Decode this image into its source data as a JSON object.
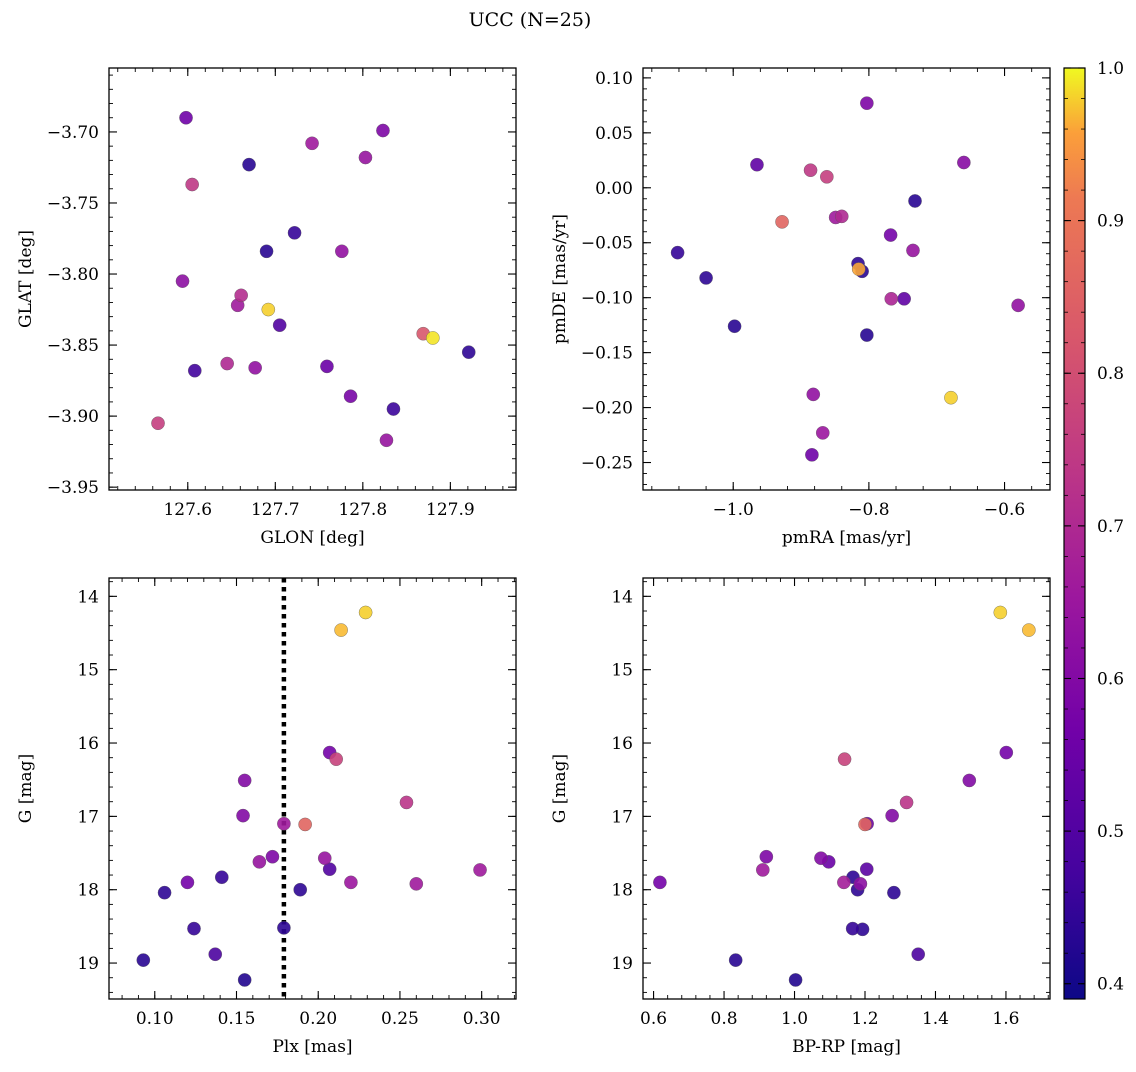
{
  "figure": {
    "title": "UCC (N=25)"
  },
  "colorbar": {
    "min": 0.39,
    "max": 1.0,
    "ticks": [
      "0.4",
      "0.5",
      "0.6",
      "0.7",
      "0.8",
      "0.9",
      "1.0"
    ],
    "tick_values": [
      0.4,
      0.5,
      0.6,
      0.7,
      0.8,
      0.9,
      1.0
    ],
    "colormap": "plasma"
  },
  "chart_data": [
    {
      "type": "scatter",
      "id": "glon-glat",
      "xlabel": "GLON [deg]",
      "ylabel": "GLAT [deg]",
      "xlim": [
        127.51,
        127.975
      ],
      "ylim": [
        -3.952,
        -3.655
      ],
      "xticks": [
        127.6,
        127.7,
        127.8,
        127.9
      ],
      "xtick_labels": [
        "127.6",
        "127.7",
        "127.8",
        "127.9"
      ],
      "yticks": [
        -3.7,
        -3.75,
        -3.8,
        -3.85,
        -3.9,
        -3.95
      ],
      "ytick_labels": [
        "−3.70",
        "−3.75",
        "−3.80",
        "−3.85",
        "−3.90",
        "−3.95"
      ],
      "points": [
        {
          "x": 127.598,
          "y": -3.69,
          "c": 0.56
        },
        {
          "x": 127.605,
          "y": -3.737,
          "c": 0.74
        },
        {
          "x": 127.67,
          "y": -3.723,
          "c": 0.43
        },
        {
          "x": 127.742,
          "y": -3.708,
          "c": 0.66
        },
        {
          "x": 127.803,
          "y": -3.718,
          "c": 0.64
        },
        {
          "x": 127.823,
          "y": -3.699,
          "c": 0.59
        },
        {
          "x": 127.69,
          "y": -3.784,
          "c": 0.43
        },
        {
          "x": 127.722,
          "y": -3.771,
          "c": 0.45
        },
        {
          "x": 127.776,
          "y": -3.784,
          "c": 0.63
        },
        {
          "x": 127.594,
          "y": -3.805,
          "c": 0.62
        },
        {
          "x": 127.661,
          "y": -3.815,
          "c": 0.71
        },
        {
          "x": 127.657,
          "y": -3.822,
          "c": 0.66
        },
        {
          "x": 127.692,
          "y": -3.825,
          "c": 0.98
        },
        {
          "x": 127.705,
          "y": -3.836,
          "c": 0.5
        },
        {
          "x": 127.869,
          "y": -3.842,
          "c": 0.82
        },
        {
          "x": 127.88,
          "y": -3.845,
          "c": 0.99
        },
        {
          "x": 127.921,
          "y": -3.855,
          "c": 0.44
        },
        {
          "x": 127.608,
          "y": -3.868,
          "c": 0.47
        },
        {
          "x": 127.645,
          "y": -3.863,
          "c": 0.7
        },
        {
          "x": 127.677,
          "y": -3.866,
          "c": 0.63
        },
        {
          "x": 127.759,
          "y": -3.865,
          "c": 0.55
        },
        {
          "x": 127.786,
          "y": -3.886,
          "c": 0.58
        },
        {
          "x": 127.835,
          "y": -3.895,
          "c": 0.46
        },
        {
          "x": 127.827,
          "y": -3.917,
          "c": 0.64
        },
        {
          "x": 127.566,
          "y": -3.905,
          "c": 0.76
        }
      ]
    },
    {
      "type": "scatter",
      "id": "pmra-pmde",
      "xlabel": "pmRA [mas/yr]",
      "ylabel": "pmDE [mas/yr]",
      "xlim": [
        -1.133,
        -0.533
      ],
      "ylim": [
        -0.275,
        0.109
      ],
      "xticks": [
        -1.0,
        -0.8,
        -0.6
      ],
      "xtick_labels": [
        "−1.0",
        "−0.8",
        "−0.6"
      ],
      "yticks": [
        0.1,
        0.05,
        0.0,
        -0.05,
        -0.1,
        -0.15,
        -0.2,
        -0.25
      ],
      "ytick_labels": [
        "0.10",
        "0.05",
        "0.00",
        "−0.05",
        "−0.10",
        "−0.15",
        "−0.20",
        "−0.25"
      ],
      "points": [
        {
          "x": -0.803,
          "y": 0.077,
          "c": 0.59
        },
        {
          "x": -0.965,
          "y": 0.021,
          "c": 0.53
        },
        {
          "x": -0.66,
          "y": 0.023,
          "c": 0.61
        },
        {
          "x": -0.886,
          "y": 0.016,
          "c": 0.74
        },
        {
          "x": -0.862,
          "y": 0.01,
          "c": 0.76
        },
        {
          "x": -0.732,
          "y": -0.012,
          "c": 0.43
        },
        {
          "x": -0.928,
          "y": -0.031,
          "c": 0.86
        },
        {
          "x": -0.849,
          "y": -0.027,
          "c": 0.66
        },
        {
          "x": -0.84,
          "y": -0.026,
          "c": 0.7
        },
        {
          "x": -0.768,
          "y": -0.043,
          "c": 0.57
        },
        {
          "x": -0.735,
          "y": -0.057,
          "c": 0.64
        },
        {
          "x": -1.082,
          "y": -0.059,
          "c": 0.45
        },
        {
          "x": -0.816,
          "y": -0.069,
          "c": 0.44
        },
        {
          "x": -0.81,
          "y": -0.076,
          "c": 0.43
        },
        {
          "x": -0.815,
          "y": -0.074,
          "c": 0.96
        },
        {
          "x": -1.04,
          "y": -0.082,
          "c": 0.44
        },
        {
          "x": -0.767,
          "y": -0.101,
          "c": 0.69
        },
        {
          "x": -0.748,
          "y": -0.101,
          "c": 0.53
        },
        {
          "x": -0.58,
          "y": -0.107,
          "c": 0.63
        },
        {
          "x": -0.998,
          "y": -0.126,
          "c": 0.43
        },
        {
          "x": -0.803,
          "y": -0.134,
          "c": 0.43
        },
        {
          "x": -0.882,
          "y": -0.188,
          "c": 0.63
        },
        {
          "x": -0.679,
          "y": -0.191,
          "c": 0.98
        },
        {
          "x": -0.868,
          "y": -0.223,
          "c": 0.65
        },
        {
          "x": -0.884,
          "y": -0.243,
          "c": 0.56
        }
      ]
    },
    {
      "type": "scatter",
      "id": "plx-g",
      "xlabel": "Plx [mas]",
      "ylabel": "G [mag]",
      "xlim": [
        0.072,
        0.321
      ],
      "ylim": [
        19.49,
        13.75
      ],
      "y_inverted": true,
      "xticks": [
        0.1,
        0.15,
        0.2,
        0.25,
        0.3
      ],
      "xtick_labels": [
        "0.10",
        "0.15",
        "0.20",
        "0.25",
        "0.30"
      ],
      "yticks": [
        14,
        15,
        16,
        17,
        18,
        19
      ],
      "ytick_labels": [
        "14",
        "15",
        "16",
        "17",
        "18",
        "19"
      ],
      "vline": {
        "x": 0.179,
        "style": "dotted"
      },
      "points": [
        {
          "x": 0.229,
          "y": 14.22,
          "c": 0.98
        },
        {
          "x": 0.214,
          "y": 14.46,
          "c": 0.97
        },
        {
          "x": 0.207,
          "y": 16.13,
          "c": 0.57
        },
        {
          "x": 0.211,
          "y": 16.22,
          "c": 0.77
        },
        {
          "x": 0.155,
          "y": 16.51,
          "c": 0.6
        },
        {
          "x": 0.254,
          "y": 16.81,
          "c": 0.73
        },
        {
          "x": 0.154,
          "y": 16.99,
          "c": 0.6
        },
        {
          "x": 0.192,
          "y": 17.11,
          "c": 0.86
        },
        {
          "x": 0.179,
          "y": 17.1,
          "c": 0.66
        },
        {
          "x": 0.172,
          "y": 17.55,
          "c": 0.59
        },
        {
          "x": 0.164,
          "y": 17.62,
          "c": 0.64
        },
        {
          "x": 0.204,
          "y": 17.57,
          "c": 0.64
        },
        {
          "x": 0.207,
          "y": 17.72,
          "c": 0.5
        },
        {
          "x": 0.299,
          "y": 17.73,
          "c": 0.66
        },
        {
          "x": 0.141,
          "y": 17.83,
          "c": 0.45
        },
        {
          "x": 0.12,
          "y": 17.9,
          "c": 0.57
        },
        {
          "x": 0.22,
          "y": 17.9,
          "c": 0.65
        },
        {
          "x": 0.26,
          "y": 17.92,
          "c": 0.66
        },
        {
          "x": 0.189,
          "y": 18.0,
          "c": 0.44
        },
        {
          "x": 0.106,
          "y": 18.04,
          "c": 0.44
        },
        {
          "x": 0.124,
          "y": 18.53,
          "c": 0.45
        },
        {
          "x": 0.179,
          "y": 18.52,
          "c": 0.44
        },
        {
          "x": 0.137,
          "y": 18.88,
          "c": 0.49
        },
        {
          "x": 0.093,
          "y": 18.96,
          "c": 0.43
        },
        {
          "x": 0.155,
          "y": 19.23,
          "c": 0.42
        }
      ]
    },
    {
      "type": "scatter",
      "id": "bprp-g",
      "xlabel": "BP-RP [mag]",
      "ylabel": "G [mag]",
      "xlim": [
        0.57,
        1.725
      ],
      "ylim": [
        19.49,
        13.75
      ],
      "y_inverted": true,
      "xticks": [
        0.6,
        0.8,
        1.0,
        1.2,
        1.4,
        1.6
      ],
      "xtick_labels": [
        "0.6",
        "0.8",
        "1.0",
        "1.2",
        "1.4",
        "1.6"
      ],
      "yticks": [
        14,
        15,
        16,
        17,
        18,
        19
      ],
      "ytick_labels": [
        "14",
        "15",
        "16",
        "17",
        "18",
        "19"
      ],
      "points": [
        {
          "x": 1.584,
          "y": 14.22,
          "c": 0.98
        },
        {
          "x": 1.665,
          "y": 14.46,
          "c": 0.97
        },
        {
          "x": 1.601,
          "y": 16.13,
          "c": 0.57
        },
        {
          "x": 1.142,
          "y": 16.22,
          "c": 0.77
        },
        {
          "x": 1.496,
          "y": 16.51,
          "c": 0.6
        },
        {
          "x": 1.318,
          "y": 16.81,
          "c": 0.73
        },
        {
          "x": 1.277,
          "y": 16.99,
          "c": 0.6
        },
        {
          "x": 1.2,
          "y": 17.11,
          "c": 0.86
        },
        {
          "x": 1.206,
          "y": 17.1,
          "c": 0.56
        },
        {
          "x": 0.92,
          "y": 17.55,
          "c": 0.59
        },
        {
          "x": 1.075,
          "y": 17.57,
          "c": 0.6
        },
        {
          "x": 1.097,
          "y": 17.62,
          "c": 0.55
        },
        {
          "x": 0.91,
          "y": 17.73,
          "c": 0.66
        },
        {
          "x": 1.205,
          "y": 17.72,
          "c": 0.52
        },
        {
          "x": 1.166,
          "y": 17.83,
          "c": 0.44
        },
        {
          "x": 0.618,
          "y": 17.9,
          "c": 0.57
        },
        {
          "x": 1.14,
          "y": 17.9,
          "c": 0.67
        },
        {
          "x": 1.187,
          "y": 17.92,
          "c": 0.62
        },
        {
          "x": 1.179,
          "y": 18.0,
          "c": 0.44
        },
        {
          "x": 1.282,
          "y": 18.04,
          "c": 0.44
        },
        {
          "x": 1.165,
          "y": 18.53,
          "c": 0.45
        },
        {
          "x": 1.193,
          "y": 18.54,
          "c": 0.44
        },
        {
          "x": 1.351,
          "y": 18.88,
          "c": 0.49
        },
        {
          "x": 0.833,
          "y": 18.96,
          "c": 0.43
        },
        {
          "x": 1.003,
          "y": 19.23,
          "c": 0.42
        }
      ]
    }
  ]
}
